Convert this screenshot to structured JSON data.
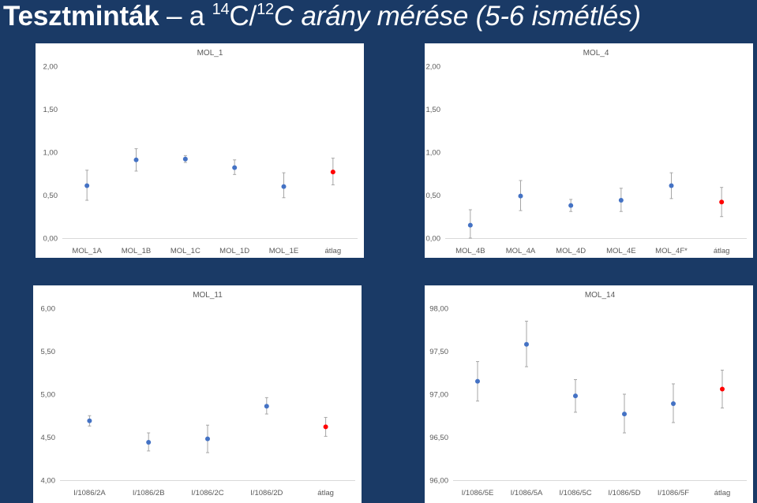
{
  "slide": {
    "title_bold": "Tesztminták",
    "title_dash": " – a ",
    "sup1": "14",
    "c1": "C/",
    "sup2": "12",
    "title_rest": "C arány mérése (5-6 ismétlés)"
  },
  "colors": {
    "background": "#1a3a66",
    "point": "#4472c4",
    "average_point": "#ff0000",
    "error_bar": "#a6a6a6",
    "axis": "#d9d9d9"
  },
  "chart_data": [
    {
      "type": "scatter",
      "title": "MOL_1",
      "categories": [
        "MOL_1A",
        "MOL_1B",
        "MOL_1C",
        "MOL_1D",
        "MOL_1E",
        "átlag"
      ],
      "values": [
        0.61,
        0.91,
        0.92,
        0.82,
        0.6,
        0.77
      ],
      "err_low": [
        0.44,
        0.78,
        0.88,
        0.74,
        0.47,
        0.62
      ],
      "err_high": [
        0.79,
        1.04,
        0.96,
        0.91,
        0.76,
        0.93
      ],
      "highlight_index": 5,
      "ylim": [
        0,
        2
      ],
      "yticks": [
        "0,00",
        "0,50",
        "1,00",
        "1,50",
        "2,00"
      ],
      "ytick_values": [
        0,
        0.5,
        1,
        1.5,
        2
      ],
      "grid": false
    },
    {
      "type": "scatter",
      "title": "MOL_4",
      "categories": [
        "MOL_4B",
        "MOL_4A",
        "MOL_4D",
        "MOL_4E",
        "MOL_4F*",
        "átlag"
      ],
      "values": [
        0.15,
        0.49,
        0.38,
        0.44,
        0.61,
        0.42
      ],
      "err_low": [
        0.0,
        0.32,
        0.31,
        0.31,
        0.46,
        0.25
      ],
      "err_high": [
        0.33,
        0.67,
        0.45,
        0.58,
        0.76,
        0.59
      ],
      "highlight_index": 5,
      "ylim": [
        0,
        2
      ],
      "yticks": [
        "0,00",
        "0,50",
        "1,00",
        "1,50",
        "2,00"
      ],
      "ytick_values": [
        0,
        0.5,
        1,
        1.5,
        2
      ],
      "grid": false
    },
    {
      "type": "scatter",
      "title": "MOL_11",
      "categories": [
        "I/1086/2A",
        "I/1086/2B",
        "I/1086/2C",
        "I/1086/2D",
        "átlag"
      ],
      "values": [
        4.69,
        4.44,
        4.48,
        4.86,
        4.62
      ],
      "err_low": [
        4.63,
        4.34,
        4.32,
        4.77,
        4.51
      ],
      "err_high": [
        4.75,
        4.55,
        4.64,
        4.96,
        4.73
      ],
      "highlight_index": 4,
      "ylim": [
        4,
        6
      ],
      "yticks": [
        "4,00",
        "4,50",
        "5,00",
        "5,50",
        "6,00"
      ],
      "ytick_values": [
        4,
        4.5,
        5,
        5.5,
        6
      ],
      "grid": false
    },
    {
      "type": "scatter",
      "title": "MOL_14",
      "categories": [
        "I/1086/5E",
        "I/1086/5A",
        "I/1086/5C",
        "I/1086/5D",
        "I/1086/5F",
        "átlag"
      ],
      "values": [
        97.15,
        97.58,
        96.98,
        96.77,
        96.89,
        97.06
      ],
      "err_low": [
        96.92,
        97.32,
        96.79,
        96.55,
        96.67,
        96.84
      ],
      "err_high": [
        97.38,
        97.85,
        97.17,
        97.0,
        97.12,
        97.28
      ],
      "highlight_index": 5,
      "ylim": [
        96,
        98
      ],
      "yticks": [
        "96,00",
        "96,50",
        "97,00",
        "97,50",
        "98,00"
      ],
      "ytick_values": [
        96,
        96.5,
        97,
        97.5,
        98
      ],
      "grid": false
    }
  ]
}
